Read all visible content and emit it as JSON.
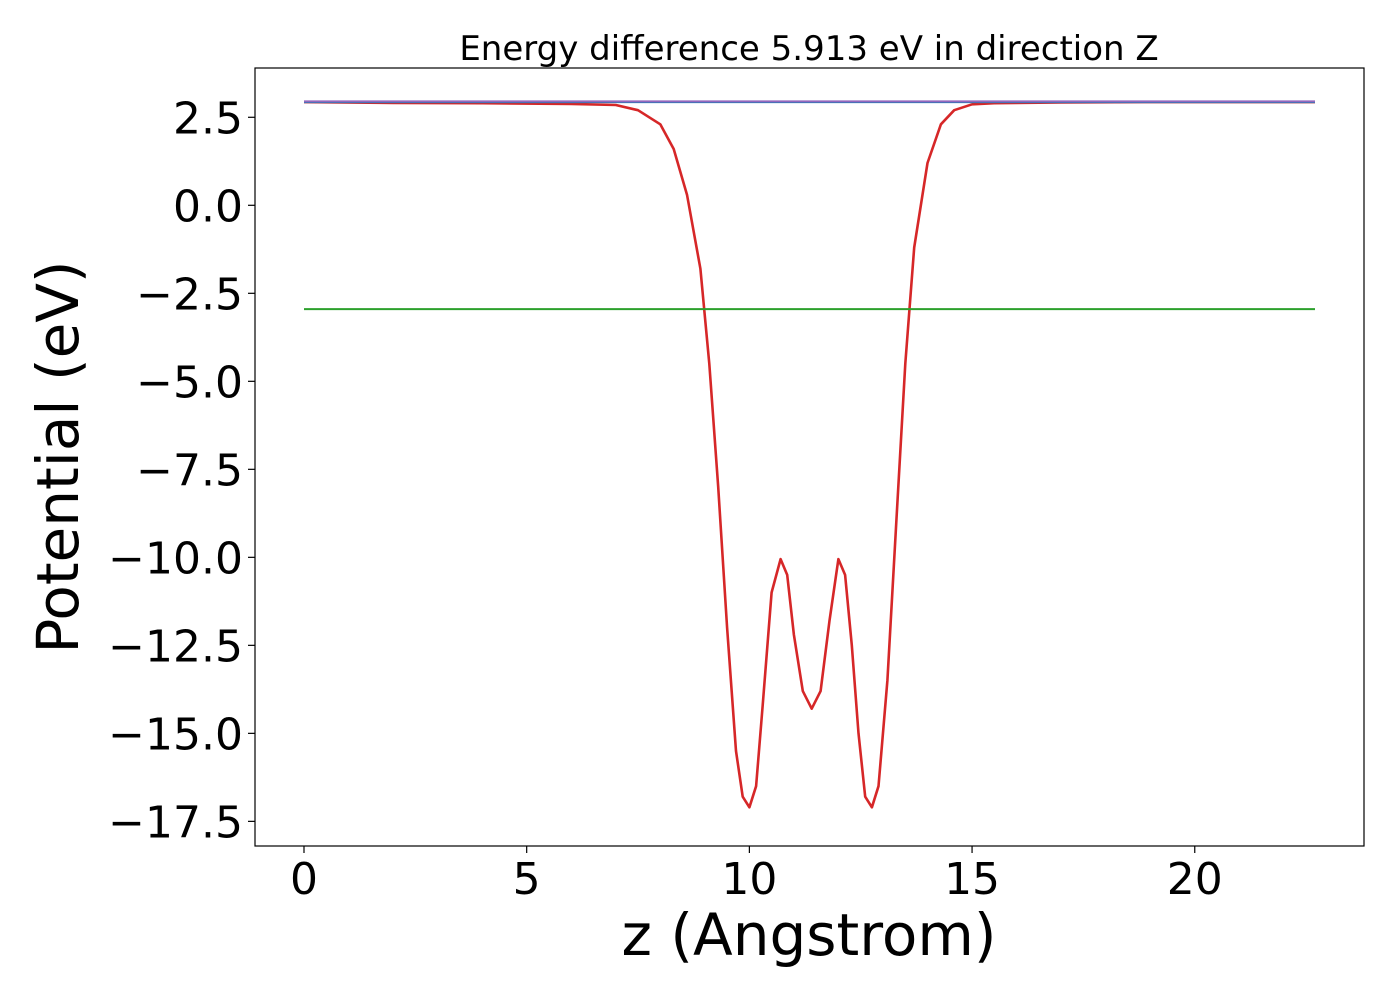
{
  "chart_data": {
    "type": "line",
    "title": "Energy difference 5.913 eV in direction Z",
    "xlabel": "z (Angstrom)",
    "ylabel": "Potential (eV)",
    "xlim": [
      -1.1,
      23.8
    ],
    "ylim": [
      -18.2,
      3.9
    ],
    "x_ticks": [
      0,
      5,
      10,
      15,
      20
    ],
    "x_tick_labels": [
      "0",
      "5",
      "10",
      "15",
      "20"
    ],
    "y_ticks": [
      2.5,
      0.0,
      -2.5,
      -5.0,
      -7.5,
      -10.0,
      -12.5,
      -15.0,
      -17.5
    ],
    "y_tick_labels": [
      "2.5",
      "0.0",
      "−2.5",
      "−5.0",
      "−7.5",
      "−10.0",
      "−12.5",
      "−15.0",
      "−17.5"
    ],
    "grid": false,
    "series": [
      {
        "color": "#d62728",
        "x": [
          0,
          2,
          4,
          6,
          7,
          7.5,
          8,
          8.3,
          8.6,
          8.9,
          9.1,
          9.3,
          9.5,
          9.7,
          9.85,
          10.0,
          10.15,
          10.3,
          10.5,
          10.7,
          10.85,
          11.0,
          11.2,
          11.4,
          11.6,
          11.8,
          12.0,
          12.15,
          12.3,
          12.45,
          12.6,
          12.75,
          12.9,
          13.1,
          13.3,
          13.5,
          13.7,
          14.0,
          14.3,
          14.6,
          15.0,
          15.5,
          16,
          17,
          19,
          21,
          22.7
        ],
        "y": [
          2.93,
          2.91,
          2.9,
          2.88,
          2.85,
          2.7,
          2.3,
          1.6,
          0.3,
          -1.8,
          -4.5,
          -8.0,
          -12.0,
          -15.5,
          -16.8,
          -17.1,
          -16.5,
          -14.2,
          -11.0,
          -10.05,
          -10.5,
          -12.2,
          -13.8,
          -14.3,
          -13.8,
          -11.8,
          -10.05,
          -10.5,
          -12.5,
          -15.0,
          -16.8,
          -17.1,
          -16.5,
          -13.5,
          -9.0,
          -4.5,
          -1.2,
          1.2,
          2.3,
          2.7,
          2.87,
          2.9,
          2.91,
          2.92,
          2.93,
          2.93,
          2.93
        ]
      },
      {
        "color": "#1f77b4",
        "x": [
          0,
          22.7
        ],
        "y": [
          2.93,
          2.93
        ]
      },
      {
        "color": "#2ca02c",
        "x": [
          0,
          22.7
        ],
        "y": [
          -2.95,
          -2.95
        ]
      },
      {
        "color": "#9467bd",
        "x": [
          0,
          22.7
        ],
        "y": [
          2.95,
          2.95
        ]
      }
    ]
  }
}
